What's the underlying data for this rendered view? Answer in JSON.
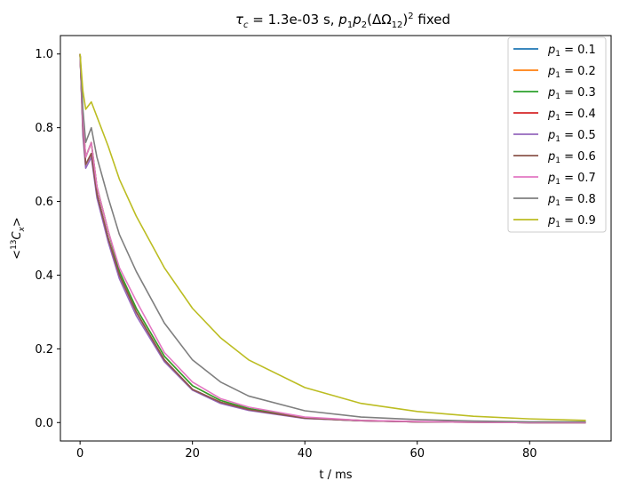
{
  "chart_data": {
    "type": "line",
    "title": "τ_c = 1.3e-03 s, p₁p₂(ΔΩ₁₂)² fixed",
    "title_parts": {
      "tau": "τ",
      "c": "c",
      "eq": " = 1.3e-03 s, ",
      "p": "p",
      "one": "1",
      "two": "2",
      "open": "(ΔΩ",
      "twelve": "12",
      "close": ")",
      "sq": "2",
      "tail": " fixed"
    },
    "xlabel": "t / ms",
    "ylabel_parts": {
      "open": "<",
      "sup": "13",
      "C": "C",
      "sub": "x",
      "close": ">"
    },
    "xlim": [
      -3.5,
      94.5
    ],
    "ylim": [
      -0.05,
      1.05
    ],
    "xticks": [
      0,
      20,
      40,
      60,
      80
    ],
    "yticks": [
      0.0,
      0.2,
      0.4,
      0.6,
      0.8,
      1.0
    ],
    "xtick_labels": [
      "0",
      "20",
      "40",
      "60",
      "80"
    ],
    "ytick_labels": [
      "0.0",
      "0.2",
      "0.4",
      "0.6",
      "0.8",
      "1.0"
    ],
    "grid": false,
    "legend_position": "top-right",
    "series": [
      {
        "name": "p₁ = 0.1",
        "label_p": "p",
        "label_sub": "1",
        "label_val": " = 0.1",
        "color": "#1f77b4",
        "x": [
          0,
          0.5,
          1,
          2,
          3,
          5,
          7,
          10,
          15,
          20,
          25,
          30,
          40,
          50,
          60,
          70,
          80,
          90
        ],
        "y": [
          1.0,
          0.8,
          0.7,
          0.73,
          0.62,
          0.5,
          0.4,
          0.3,
          0.17,
          0.09,
          0.055,
          0.035,
          0.012,
          0.005,
          0.002,
          0.001,
          0.0,
          0.0
        ]
      },
      {
        "name": "p₁ = 0.2",
        "label_p": "p",
        "label_sub": "1",
        "label_val": " = 0.2",
        "color": "#ff7f0e",
        "x": [
          0,
          0.5,
          1,
          2,
          3,
          5,
          7,
          10,
          15,
          20,
          25,
          30,
          40,
          50,
          60,
          70,
          80,
          90
        ],
        "y": [
          1.0,
          0.82,
          0.72,
          0.76,
          0.64,
          0.52,
          0.41,
          0.31,
          0.18,
          0.1,
          0.06,
          0.038,
          0.013,
          0.006,
          0.002,
          0.001,
          0.0,
          0.0
        ]
      },
      {
        "name": "p₁ = 0.3",
        "label_p": "p",
        "label_sub": "1",
        "label_val": " = 0.3",
        "color": "#2ca02c",
        "x": [
          0,
          0.5,
          1,
          2,
          3,
          5,
          7,
          10,
          15,
          20,
          25,
          30,
          40,
          50,
          60,
          70,
          80,
          90
        ],
        "y": [
          1.0,
          0.82,
          0.72,
          0.76,
          0.64,
          0.52,
          0.41,
          0.31,
          0.18,
          0.1,
          0.06,
          0.038,
          0.013,
          0.006,
          0.002,
          0.001,
          0.0,
          0.0
        ]
      },
      {
        "name": "p₁ = 0.4",
        "label_p": "p",
        "label_sub": "1",
        "label_val": " = 0.4",
        "color": "#d62728",
        "x": [
          0,
          0.5,
          1,
          2,
          3,
          5,
          7,
          10,
          15,
          20,
          25,
          30,
          40,
          50,
          60,
          70,
          80,
          90
        ],
        "y": [
          1.0,
          0.8,
          0.7,
          0.73,
          0.62,
          0.5,
          0.4,
          0.3,
          0.17,
          0.09,
          0.055,
          0.035,
          0.012,
          0.005,
          0.002,
          0.001,
          0.0,
          0.0
        ]
      },
      {
        "name": "p₁ = 0.5",
        "label_p": "p",
        "label_sub": "1",
        "label_val": " = 0.5",
        "color": "#9467bd",
        "x": [
          0,
          0.5,
          1,
          2,
          3,
          5,
          7,
          10,
          15,
          20,
          25,
          30,
          40,
          50,
          60,
          70,
          80,
          90
        ],
        "y": [
          1.0,
          0.78,
          0.69,
          0.72,
          0.61,
          0.49,
          0.39,
          0.29,
          0.165,
          0.088,
          0.052,
          0.033,
          0.011,
          0.005,
          0.002,
          0.001,
          0.0,
          0.0
        ]
      },
      {
        "name": "p₁ = 0.6",
        "label_p": "p",
        "label_sub": "1",
        "label_val": " = 0.6",
        "color": "#8c564b",
        "x": [
          0,
          0.5,
          1,
          2,
          3,
          5,
          7,
          10,
          15,
          20,
          25,
          30,
          40,
          50,
          60,
          70,
          80,
          90
        ],
        "y": [
          1.0,
          0.8,
          0.7,
          0.73,
          0.62,
          0.5,
          0.4,
          0.3,
          0.17,
          0.09,
          0.055,
          0.035,
          0.012,
          0.005,
          0.002,
          0.001,
          0.0,
          0.0
        ]
      },
      {
        "name": "p₁ = 0.7",
        "label_p": "p",
        "label_sub": "1",
        "label_val": " = 0.7",
        "color": "#e377c2",
        "x": [
          0,
          0.5,
          1,
          2,
          3,
          5,
          7,
          10,
          15,
          20,
          25,
          30,
          40,
          50,
          60,
          70,
          80,
          90
        ],
        "y": [
          1.0,
          0.82,
          0.72,
          0.76,
          0.64,
          0.52,
          0.42,
          0.33,
          0.19,
          0.11,
          0.065,
          0.042,
          0.015,
          0.006,
          0.003,
          0.001,
          0.0,
          0.0
        ]
      },
      {
        "name": "p₁ = 0.8",
        "label_p": "p",
        "label_sub": "1",
        "label_val": " = 0.8",
        "color": "#7f7f7f",
        "x": [
          0,
          0.5,
          1,
          2,
          3,
          5,
          7,
          10,
          15,
          20,
          25,
          30,
          40,
          50,
          60,
          70,
          80,
          90
        ],
        "y": [
          1.0,
          0.85,
          0.76,
          0.8,
          0.72,
          0.61,
          0.51,
          0.41,
          0.27,
          0.17,
          0.11,
          0.072,
          0.032,
          0.015,
          0.008,
          0.004,
          0.002,
          0.002
        ]
      },
      {
        "name": "p₁ = 0.9",
        "label_p": "p",
        "label_sub": "1",
        "label_val": " = 0.9",
        "color": "#bcbd22",
        "x": [
          0,
          0.5,
          1,
          2,
          3,
          5,
          7,
          10,
          15,
          20,
          25,
          30,
          40,
          50,
          60,
          70,
          80,
          90
        ],
        "y": [
          1.0,
          0.9,
          0.85,
          0.87,
          0.83,
          0.75,
          0.66,
          0.56,
          0.42,
          0.31,
          0.23,
          0.17,
          0.095,
          0.052,
          0.03,
          0.017,
          0.01,
          0.006
        ]
      }
    ]
  }
}
